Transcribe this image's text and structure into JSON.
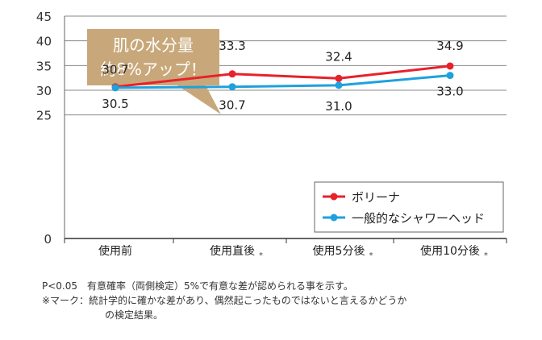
{
  "chart_data": {
    "type": "line",
    "categories": [
      "使用前",
      "使用直後",
      "使用5分後",
      "使用10分後"
    ],
    "category_marks": [
      "",
      "*",
      "*",
      "*"
    ],
    "ylim": [
      0,
      45
    ],
    "yticks": [
      "0",
      "25",
      "30",
      "35",
      "40",
      "45"
    ],
    "series": [
      {
        "name": "ボリーナ",
        "color": "#e8212b",
        "values": [
          30.7,
          33.3,
          32.4,
          34.9
        ],
        "labels": [
          "30.7",
          "33.3",
          "32.4",
          "34.9"
        ]
      },
      {
        "name": "一般的なシャワーヘッド",
        "color": "#1ea1dd",
        "values": [
          30.5,
          30.7,
          31.0,
          33.0
        ],
        "labels": [
          "30.5",
          "30.7",
          "31.0",
          "33.0"
        ]
      }
    ],
    "callout": {
      "line1": "肌の水分量",
      "line2": "約8%アップ！",
      "color": "#c8a87a"
    },
    "legend": "bottom-right",
    "grid": true
  },
  "notes": {
    "line1": "P<0.05　有意確率（両側検定）5%で有意な差が認められる事を示す。",
    "line2": "※マーク：統計学的に確かな差があり、偶然起こったものではないと言えるかどうか",
    "line3": "の検定結果。"
  }
}
